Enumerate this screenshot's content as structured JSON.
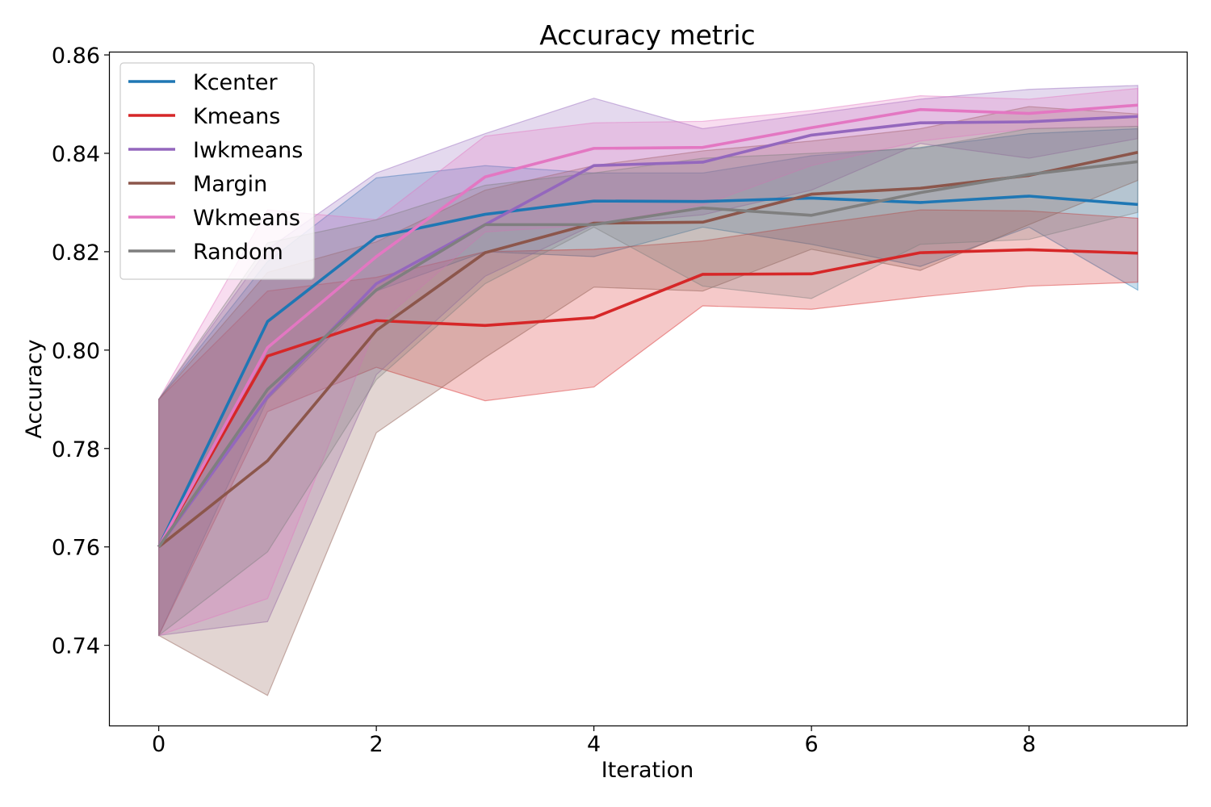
{
  "chart_data": {
    "type": "line",
    "title": "Accuracy metric",
    "xlabel": "Iteration",
    "ylabel": "Accuracy",
    "xlim": [
      -0.45,
      9.45
    ],
    "ylim": [
      0.7237,
      0.8605
    ],
    "xticks": [
      0,
      2,
      4,
      6,
      8
    ],
    "xtick_labels": [
      "0",
      "2",
      "4",
      "6",
      "8"
    ],
    "yticks": [
      0.74,
      0.76,
      0.78,
      0.8,
      0.82,
      0.84,
      0.86
    ],
    "ytick_labels": [
      "0.74",
      "0.76",
      "0.78",
      "0.80",
      "0.82",
      "0.84",
      "0.86"
    ],
    "grid": false,
    "legend_position": "top-left",
    "x": [
      0,
      1,
      2,
      3,
      4,
      5,
      6,
      7,
      8,
      9
    ],
    "series": [
      {
        "name": "Kcenter",
        "color": "#1f77b4",
        "values": [
          0.76,
          0.8058,
          0.823,
          0.8276,
          0.8303,
          0.8302,
          0.8309,
          0.83,
          0.8313,
          0.8296
        ],
        "lower": [
          0.742,
          0.79,
          0.812,
          0.82,
          0.819,
          0.825,
          0.8215,
          0.817,
          0.825,
          0.8122
        ],
        "upper": [
          0.79,
          0.818,
          0.835,
          0.8375,
          0.836,
          0.836,
          0.8395,
          0.8412,
          0.844,
          0.845
        ]
      },
      {
        "name": "Kmeans",
        "color": "#d62728",
        "values": [
          0.76,
          0.7988,
          0.806,
          0.805,
          0.8066,
          0.8154,
          0.8155,
          0.8198,
          0.8204,
          0.8197
        ],
        "lower": [
          0.742,
          0.7875,
          0.7965,
          0.7897,
          0.7925,
          0.809,
          0.8083,
          0.8108,
          0.813,
          0.8138
        ],
        "upper": [
          0.79,
          0.812,
          0.8148,
          0.82,
          0.8205,
          0.8222,
          0.8255,
          0.8285,
          0.8283,
          0.8268
        ]
      },
      {
        "name": "Iwkmeans",
        "color": "#9467bd",
        "values": [
          0.76,
          0.7905,
          0.8135,
          0.8255,
          0.8375,
          0.8382,
          0.8437,
          0.8462,
          0.8464,
          0.8475
        ],
        "lower": [
          0.742,
          0.7448,
          0.795,
          0.815,
          0.8255,
          0.8275,
          0.8325,
          0.842,
          0.839,
          0.843
        ],
        "upper": [
          0.79,
          0.8205,
          0.836,
          0.844,
          0.8512,
          0.845,
          0.848,
          0.851,
          0.853,
          0.8538
        ]
      },
      {
        "name": "Margin",
        "color": "#8c564b",
        "values": [
          0.76,
          0.7775,
          0.804,
          0.8198,
          0.8258,
          0.826,
          0.8317,
          0.8329,
          0.8355,
          0.8402
        ],
        "lower": [
          0.742,
          0.7298,
          0.7832,
          0.7985,
          0.8128,
          0.812,
          0.8205,
          0.8162,
          0.8255,
          0.8345
        ],
        "upper": [
          0.79,
          0.8158,
          0.822,
          0.8325,
          0.8375,
          0.8405,
          0.8425,
          0.845,
          0.8495,
          0.848
        ]
      },
      {
        "name": "Wkmeans",
        "color": "#e377c2",
        "values": [
          0.76,
          0.8005,
          0.819,
          0.8352,
          0.841,
          0.8412,
          0.8452,
          0.8489,
          0.8481,
          0.8498
        ],
        "lower": [
          0.742,
          0.7495,
          0.805,
          0.824,
          0.8255,
          0.8295,
          0.8375,
          0.8425,
          0.845,
          0.8455
        ],
        "upper": [
          0.79,
          0.8285,
          0.8265,
          0.8435,
          0.8462,
          0.8465,
          0.8487,
          0.8517,
          0.851,
          0.8532
        ]
      },
      {
        "name": "Random",
        "color": "#7f7f7f",
        "values": [
          0.76,
          0.792,
          0.8122,
          0.8255,
          0.8255,
          0.8289,
          0.8274,
          0.832,
          0.8357,
          0.8383
        ],
        "lower": [
          0.742,
          0.759,
          0.794,
          0.8135,
          0.825,
          0.813,
          0.8105,
          0.8215,
          0.8225,
          0.828
        ],
        "upper": [
          0.79,
          0.8218,
          0.8265,
          0.8335,
          0.836,
          0.839,
          0.84,
          0.841,
          0.845,
          0.8455
        ]
      }
    ]
  }
}
